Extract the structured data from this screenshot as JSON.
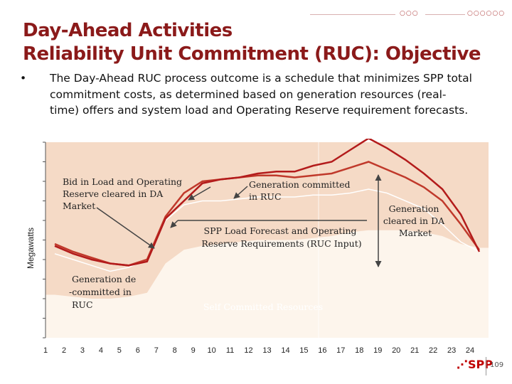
{
  "slide": {
    "title_line1": "Day-Ahead Activities",
    "title_line2": "Reliability Unit Commitment (RUC): Objective",
    "bullet": "The Day-Ahead RUC process outcome is a schedule that minimizes SPP total commitment costs, as determined based on generation resources (real-time) offers and system load and Operating Reserve requirement forecasts.",
    "footer_logo": "SPP",
    "page_number": "109",
    "accent_color": "#8b1a1a"
  },
  "chart_data": {
    "type": "area",
    "ylabel": "Megawatts",
    "xlabel": "",
    "x": [
      1,
      2,
      3,
      4,
      5,
      6,
      7,
      8,
      9,
      10,
      11,
      12,
      13,
      14,
      15,
      16,
      17,
      18,
      19,
      20,
      21,
      22,
      23,
      24
    ],
    "ylim": [
      0,
      100
    ],
    "y_ticks_labeled": false,
    "series": [
      {
        "role": "self-committed-area",
        "values": [
          22,
          21,
          20,
          20,
          21,
          23,
          38,
          45,
          47,
          48,
          49,
          50,
          50,
          50,
          51,
          52,
          54,
          55,
          55,
          55,
          54,
          52,
          48,
          46
        ]
      },
      {
        "role": "load-forecast-line",
        "values": [
          43,
          40,
          37,
          34,
          36,
          40,
          60,
          68,
          70,
          70,
          71,
          72,
          72,
          72,
          73,
          73,
          74,
          76,
          74,
          70,
          66,
          58,
          49,
          44
        ]
      },
      {
        "role": "ruc-commitment-line",
        "values": [
          47,
          43,
          40,
          38,
          37,
          39,
          61,
          70,
          79,
          81,
          82,
          84,
          85,
          85,
          88,
          90,
          96,
          102,
          97,
          91,
          84,
          76,
          63,
          44
        ]
      },
      {
        "role": "da-market-line",
        "values": [
          48,
          44,
          41,
          38,
          37,
          40,
          62,
          74,
          80,
          81,
          82,
          83,
          83,
          82,
          83,
          84,
          87,
          90,
          86,
          82,
          77,
          70,
          58,
          45
        ]
      }
    ],
    "annotations": [
      "Bid in Load and Operating Reserve cleared in DA Market",
      "Generation committed in RUC",
      "Generation cleared in DA Market",
      "SPP Load Forecast and Operating Reserve Requirements (RUC Input)",
      "Generation de -committed in RUC",
      "Self Committed Resources"
    ],
    "colors": {
      "plot_background": "#f5dac6",
      "area_fill": "#fdf5ec",
      "ruc_line": "#b31b1b",
      "da_line": "#c0392b",
      "annotation_arrow": "#444444"
    }
  }
}
